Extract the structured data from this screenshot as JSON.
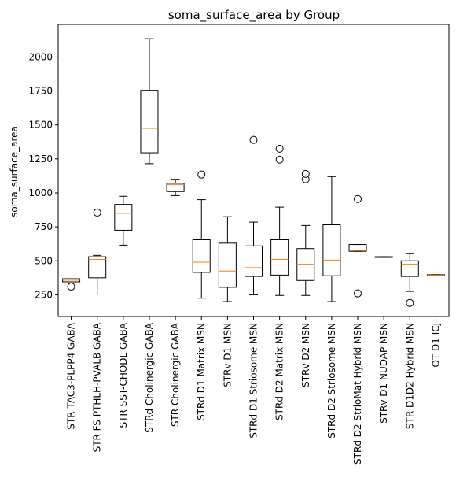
{
  "chart_data": {
    "type": "box",
    "title": "soma_surface_area by Group",
    "xlabel": "",
    "ylabel": "soma_surface_area",
    "ylim": [
      90,
      2240
    ],
    "yticks": [
      250,
      500,
      750,
      1000,
      1250,
      1500,
      1750,
      2000
    ],
    "grid": false,
    "colors": {
      "box": "#000000",
      "median": "#ff7f0e",
      "outlier": "#000000"
    },
    "groups": [
      {
        "name": "STR TAC3-PLPP4 GABA",
        "whisker_low": 345,
        "q1": 345,
        "median": 357,
        "q3": 368,
        "whisker_high": 368,
        "outliers": [
          310
        ]
      },
      {
        "name": "STR FS PTHLH-PVALB GABA",
        "whisker_low": 255,
        "q1": 375,
        "median": 510,
        "q3": 530,
        "whisker_high": 540,
        "outliers": [
          855
        ]
      },
      {
        "name": "STR SST-CHODL GABA",
        "whisker_low": 615,
        "q1": 725,
        "median": 850,
        "q3": 915,
        "whisker_high": 975,
        "outliers": []
      },
      {
        "name": "STRd Cholinergic GABA",
        "whisker_low": 1215,
        "q1": 1295,
        "median": 1475,
        "q3": 1755,
        "whisker_high": 2135,
        "outliers": []
      },
      {
        "name": "STR Cholinergic GABA",
        "whisker_low": 980,
        "q1": 1010,
        "median": 1060,
        "q3": 1070,
        "whisker_high": 1100,
        "outliers": []
      },
      {
        "name": "STRd D1 Matrix MSN",
        "whisker_low": 225,
        "q1": 415,
        "median": 490,
        "q3": 655,
        "whisker_high": 950,
        "outliers": [
          1135
        ]
      },
      {
        "name": "STRv D1 MSN",
        "whisker_low": 200,
        "q1": 305,
        "median": 425,
        "q3": 630,
        "whisker_high": 825,
        "outliers": []
      },
      {
        "name": "STRd D1 Striosome MSN",
        "whisker_low": 250,
        "q1": 385,
        "median": 450,
        "q3": 610,
        "whisker_high": 785,
        "outliers": [
          1390
        ]
      },
      {
        "name": "STRd D2 Matrix MSN",
        "whisker_low": 245,
        "q1": 395,
        "median": 510,
        "q3": 655,
        "whisker_high": 895,
        "outliers": [
          1245,
          1325
        ]
      },
      {
        "name": "STRv D2 MSN",
        "whisker_low": 245,
        "q1": 355,
        "median": 475,
        "q3": 590,
        "whisker_high": 760,
        "outliers": [
          1100,
          1140
        ]
      },
      {
        "name": "STRd D2 Striosome MSN",
        "whisker_low": 200,
        "q1": 390,
        "median": 505,
        "q3": 765,
        "whisker_high": 1120,
        "outliers": []
      },
      {
        "name": "STRd D2 StrioMat Hybrid MSN",
        "whisker_low": 570,
        "q1": 570,
        "median": 575,
        "q3": 620,
        "whisker_high": 620,
        "outliers": [
          260,
          955
        ]
      },
      {
        "name": "STRv D1 NUDAP MSN",
        "whisker_low": 525,
        "q1": 525,
        "median": 527,
        "q3": 530,
        "whisker_high": 530,
        "outliers": []
      },
      {
        "name": "STR D1D2 Hybrid MSN",
        "whisker_low": 275,
        "q1": 385,
        "median": 475,
        "q3": 500,
        "whisker_high": 555,
        "outliers": [
          190
        ]
      },
      {
        "name": "OT D1 ICj",
        "whisker_low": 392,
        "q1": 392,
        "median": 395,
        "q3": 398,
        "whisker_high": 398,
        "outliers": []
      }
    ]
  }
}
